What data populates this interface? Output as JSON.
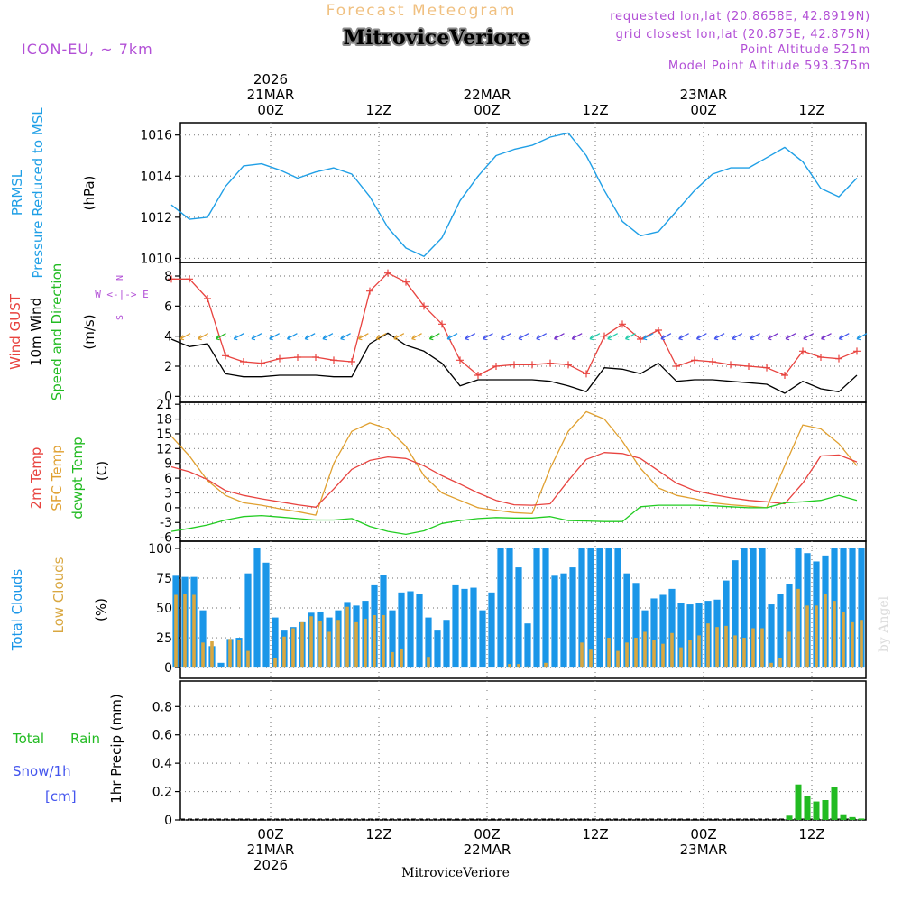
{
  "header": {
    "title": "Forecast Meteogram",
    "station": "MitroviceVeriore",
    "model": "ICON-EU, ~ 7km",
    "requested": "requested lon,lat (20.8658E, 42.8919N)",
    "closest": "grid closest lon,lat (20.875E, 42.875N)",
    "point_alt": "Point Altitude 521m",
    "model_alt": "Model Point Altitude 593.375m",
    "credit": "by Angel",
    "footer_station": "MitroviceVeriore"
  },
  "time_axis": {
    "hours_start": -10,
    "hours_end": 66,
    "top_labels": [
      {
        "h": 0,
        "lines": [
          "2026",
          "21MAR",
          "00Z"
        ]
      },
      {
        "h": 12,
        "lines": [
          "12Z"
        ]
      },
      {
        "h": 24,
        "lines": [
          "22MAR",
          "00Z"
        ]
      },
      {
        "h": 36,
        "lines": [
          "12Z"
        ]
      },
      {
        "h": 48,
        "lines": [
          "23MAR",
          "00Z"
        ]
      },
      {
        "h": 60,
        "lines": [
          "12Z"
        ]
      }
    ],
    "bottom_labels": [
      {
        "h": 0,
        "lines": [
          "00Z",
          "21MAR",
          "2026"
        ]
      },
      {
        "h": 12,
        "lines": [
          "12Z"
        ]
      },
      {
        "h": 24,
        "lines": [
          "00Z",
          "22MAR"
        ]
      },
      {
        "h": 36,
        "lines": [
          "12Z"
        ]
      },
      {
        "h": 48,
        "lines": [
          "00Z",
          "23MAR"
        ]
      },
      {
        "h": 60,
        "lines": [
          "12Z"
        ]
      }
    ]
  },
  "panels": {
    "pressure": {
      "labels": [
        "PRMSL",
        "Pressure Reduced to MSL",
        "(hPa)"
      ]
    },
    "wind": {
      "labels": [
        "Wind GUST",
        "10m Wind",
        "Speed and Direction",
        "(m/s)"
      ],
      "compass": [
        "N",
        "W <-|-> E",
        "S"
      ]
    },
    "temp": {
      "labels": [
        "2m Temp",
        "SFC Temp",
        "dewpt Temp",
        "(C)"
      ]
    },
    "clouds": {
      "labels": [
        "Total Clouds",
        "Low Clouds",
        "(%)"
      ]
    },
    "precip": {
      "labels": [
        "Total",
        "Rain",
        "Snow/1h",
        "[cm]",
        "1hr Precip (mm)"
      ]
    }
  },
  "colors": {
    "pressure": "#1f9fe6",
    "gust": "#e8433f",
    "wind": "#000000",
    "t2m": "#e8433f",
    "sfc": "#e0a030",
    "dew": "#22cc22",
    "total_cloud": "#1a96e8",
    "low_cloud": "#d9a740",
    "rain": "#22bb22",
    "snow": "#4455ee",
    "label_purple": "#b24fd6",
    "title_orange": "#f0c080"
  },
  "chart_data": [
    {
      "type": "line",
      "title": "PRMSL Pressure Reduced to MSL",
      "ylabel": "(hPa)",
      "ylim": [
        1009.8,
        1016.6
      ],
      "yticks": [
        1010,
        1012,
        1014,
        1016
      ],
      "x_hours": [
        -11,
        -9,
        -7,
        -5,
        -3,
        -1,
        1,
        3,
        5,
        7,
        9,
        11,
        13,
        15,
        17,
        19,
        21,
        23,
        25,
        27,
        29,
        31,
        33,
        35,
        37,
        39,
        41,
        43,
        45,
        47,
        49,
        51,
        53,
        55,
        57,
        59,
        61,
        63,
        65
      ],
      "series": [
        {
          "name": "PRMSL",
          "values": [
            1012.6,
            1011.9,
            1012.0,
            1013.5,
            1014.5,
            1014.6,
            1014.3,
            1013.9,
            1014.2,
            1014.4,
            1014.1,
            1013.0,
            1011.5,
            1010.5,
            1010.1,
            1011.0,
            1012.8,
            1014.0,
            1015.0,
            1015.3,
            1015.5,
            1015.9,
            1016.1,
            1015.0,
            1013.3,
            1011.8,
            1011.1,
            1011.3,
            1012.3,
            1013.3,
            1014.1,
            1014.4,
            1014.4,
            1014.9,
            1015.4,
            1014.7,
            1013.4,
            1013.0,
            1013.9
          ]
        }
      ]
    },
    {
      "type": "line",
      "title": "Wind GUST / 10m Wind Speed and Direction",
      "ylabel": "(m/s)",
      "ylim": [
        -0.4,
        8.9
      ],
      "yticks": [
        0,
        2,
        4,
        6,
        8
      ],
      "x_hours": [
        -11,
        -9,
        -7,
        -5,
        -3,
        -1,
        1,
        3,
        5,
        7,
        9,
        11,
        13,
        15,
        17,
        19,
        21,
        23,
        25,
        27,
        29,
        31,
        33,
        35,
        37,
        39,
        41,
        43,
        45,
        47,
        49,
        51,
        53,
        55,
        57,
        59,
        61,
        63,
        65
      ],
      "series": [
        {
          "name": "Wind GUST",
          "values": [
            7.8,
            7.8,
            6.5,
            2.7,
            2.3,
            2.2,
            2.5,
            2.6,
            2.6,
            2.4,
            2.3,
            7.0,
            8.2,
            7.6,
            6.0,
            4.8,
            2.4,
            1.4,
            2.0,
            2.1,
            2.1,
            2.2,
            2.1,
            1.5,
            4.0,
            4.8,
            3.8,
            4.4,
            2.0,
            2.4,
            2.3,
            2.1,
            2.0,
            1.9,
            1.4,
            3.0,
            2.6,
            2.5,
            3.0
          ]
        },
        {
          "name": "10m Wind",
          "values": [
            3.8,
            3.3,
            3.5,
            1.5,
            1.3,
            1.3,
            1.4,
            1.4,
            1.4,
            1.3,
            1.3,
            3.5,
            4.2,
            3.4,
            3.0,
            2.2,
            0.7,
            1.1,
            1.1,
            1.1,
            1.1,
            1.0,
            0.7,
            0.3,
            1.9,
            1.8,
            1.5,
            2.2,
            1.0,
            1.1,
            1.1,
            1.0,
            0.9,
            0.8,
            0.2,
            1.0,
            0.5,
            0.3,
            1.4
          ]
        }
      ],
      "wind_barbs": {
        "count": 39,
        "speed": 4
      }
    },
    {
      "type": "line",
      "title": "2m Temp / SFC Temp / dewpt Temp",
      "ylabel": "(C)",
      "ylim": [
        -6.8,
        21.4
      ],
      "yticks": [
        -6,
        -3,
        0,
        3,
        6,
        9,
        12,
        15,
        18,
        21
      ],
      "x_hours": [
        -11,
        -9,
        -7,
        -5,
        -3,
        -1,
        1,
        3,
        5,
        7,
        9,
        11,
        13,
        15,
        17,
        19,
        21,
        23,
        25,
        27,
        29,
        31,
        33,
        35,
        37,
        39,
        41,
        43,
        45,
        47,
        49,
        51,
        53,
        55,
        57,
        59,
        61,
        63,
        65
      ],
      "series": [
        {
          "name": "2m Temp",
          "values": [
            8.3,
            7.3,
            5.7,
            3.5,
            2.5,
            1.8,
            1.2,
            0.6,
            0.1,
            3.8,
            7.8,
            9.6,
            10.3,
            10.0,
            8.5,
            6.5,
            4.8,
            3.0,
            1.5,
            0.6,
            0.5,
            0.8,
            5.5,
            9.8,
            11.2,
            11.0,
            10.0,
            7.5,
            5.0,
            3.5,
            2.7,
            2.0,
            1.5,
            1.2,
            0.8,
            5.0,
            10.5,
            10.7,
            9.3
          ]
        },
        {
          "name": "SFC Temp",
          "values": [
            14.5,
            10.5,
            5.5,
            2.5,
            1.0,
            0.5,
            -0.2,
            -0.8,
            -1.5,
            9.0,
            15.5,
            17.2,
            16.0,
            12.5,
            6.5,
            3.0,
            1.5,
            0.0,
            -0.5,
            -1.0,
            -1.2,
            8.0,
            15.5,
            19.5,
            18.0,
            13.5,
            8.0,
            4.0,
            2.5,
            1.8,
            1.0,
            0.6,
            0.3,
            0.0,
            8.5,
            16.8,
            16.0,
            13.0,
            8.5
          ]
        },
        {
          "name": "dewpt Temp",
          "values": [
            -4.8,
            -4.2,
            -3.5,
            -2.5,
            -1.8,
            -1.6,
            -1.9,
            -2.2,
            -2.5,
            -2.5,
            -2.2,
            -3.8,
            -4.8,
            -5.4,
            -4.7,
            -3.2,
            -2.6,
            -2.2,
            -2.0,
            -2.1,
            -2.1,
            -1.8,
            -2.6,
            -2.7,
            -2.8,
            -2.8,
            0.2,
            0.5,
            0.5,
            0.5,
            0.4,
            0.2,
            0.0,
            0.0,
            1.0,
            1.2,
            1.5,
            2.5,
            1.5
          ]
        }
      ]
    },
    {
      "type": "bar",
      "title": "Total Clouds / Low Clouds",
      "ylabel": "(%)",
      "ylim": [
        -9,
        106
      ],
      "yticks": [
        0,
        25,
        50,
        75,
        100
      ],
      "x_hours": [
        -10.5,
        -9.5,
        -8.5,
        -7.5,
        -6.5,
        -5.5,
        -4.5,
        -3.5,
        -2.5,
        -1.5,
        -0.5,
        0.5,
        1.5,
        2.5,
        3.5,
        4.5,
        5.5,
        6.5,
        7.5,
        8.5,
        9.5,
        10.5,
        11.5,
        12.5,
        13.5,
        14.5,
        15.5,
        16.5,
        17.5,
        18.5,
        19.5,
        20.5,
        21.5,
        22.5,
        23.5,
        24.5,
        25.5,
        26.5,
        27.5,
        28.5,
        29.5,
        30.5,
        31.5,
        32.5,
        33.5,
        34.5,
        35.5,
        36.5,
        37.5,
        38.5,
        39.5,
        40.5,
        41.5,
        42.5,
        43.5,
        44.5,
        45.5,
        46.5,
        47.5,
        48.5,
        49.5,
        50.5,
        51.5,
        52.5,
        53.5,
        54.5,
        55.5,
        56.5,
        57.5,
        58.5,
        59.5,
        60.5,
        61.5,
        62.5,
        63.5,
        64.5,
        65.5
      ],
      "series": [
        {
          "name": "Total Clouds",
          "values": [
            77,
            76,
            76,
            48,
            18,
            4,
            24,
            25,
            79,
            100,
            88,
            42,
            31,
            34,
            38,
            46,
            47,
            42,
            48,
            55,
            52,
            56,
            69,
            78,
            48,
            63,
            64,
            62,
            42,
            31,
            40,
            69,
            66,
            67,
            48,
            63,
            100,
            100,
            84,
            37,
            100,
            100,
            77,
            79,
            84,
            100,
            100,
            100,
            100,
            100,
            79,
            71,
            48,
            58,
            61,
            66,
            54,
            53,
            54,
            56,
            57,
            73,
            90,
            100,
            100,
            100,
            53,
            62,
            70,
            100,
            96,
            89,
            94,
            100,
            100,
            100,
            100
          ]
        },
        {
          "name": "Low Clouds",
          "values": [
            61,
            62,
            61,
            21,
            22,
            0,
            24,
            23,
            14,
            0,
            0,
            8,
            26,
            33,
            38,
            43,
            39,
            30,
            40,
            51,
            38,
            41,
            44,
            44,
            13,
            16,
            0,
            0,
            9,
            0,
            0,
            0,
            0,
            0,
            0,
            0,
            0,
            3,
            3,
            1,
            0,
            4,
            0,
            0,
            0,
            21,
            15,
            0,
            25,
            14,
            21,
            25,
            30,
            23,
            20,
            29,
            17,
            23,
            27,
            37,
            34,
            35,
            27,
            25,
            33,
            33,
            4,
            8,
            30,
            66,
            52,
            52,
            62,
            56,
            47,
            38,
            40
          ]
        }
      ]
    },
    {
      "type": "bar",
      "title": "1hr Precip (mm)",
      "ylabel": "1hr Precip (mm)",
      "ylim": [
        0,
        0.98
      ],
      "yticks": [
        0,
        0.2,
        0.4,
        0.6,
        0.8
      ],
      "ytick_labels": [
        "0",
        "0.2",
        "0.4",
        "0.6",
        "0.8"
      ],
      "x_hours": [
        57.5,
        58.5,
        59.5,
        60.5,
        61.5,
        62.5,
        63.5,
        64.5,
        65.5
      ],
      "series": [
        {
          "name": "Total Rain",
          "values": [
            0.03,
            0.25,
            0.17,
            0.13,
            0.14,
            0.23,
            0.04,
            0.02,
            0.01
          ]
        },
        {
          "name": "Snow/1h",
          "values": [
            0,
            0,
            0,
            0,
            0,
            0,
            0,
            0,
            0
          ]
        }
      ]
    }
  ]
}
